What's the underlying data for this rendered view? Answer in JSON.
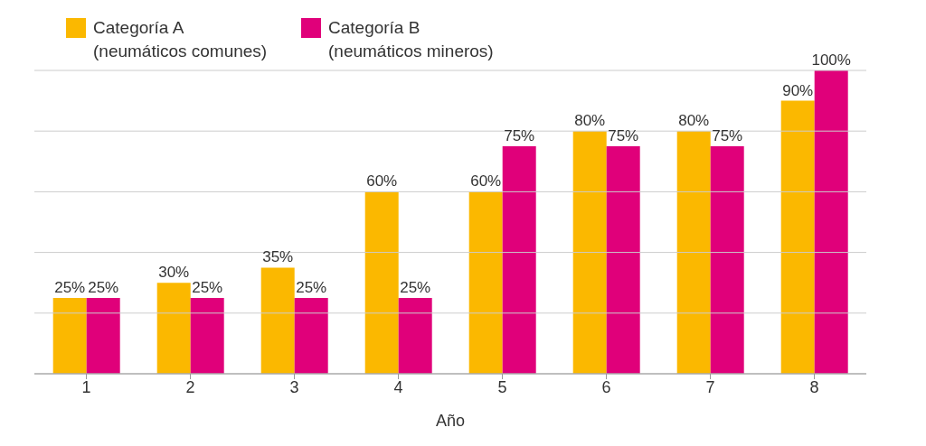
{
  "chart_data": {
    "type": "bar",
    "xlabel": "Año",
    "categories": [
      "1",
      "2",
      "3",
      "4",
      "5",
      "6",
      "7",
      "8"
    ],
    "series": [
      {
        "name": "Categoría A (neumáticos comunes)",
        "color": "#fbb800",
        "values": [
          25,
          30,
          35,
          60,
          60,
          80,
          80,
          90
        ],
        "value_labels": [
          "25%",
          "30%",
          "35%",
          "60%",
          "60%",
          "80%",
          "80%",
          "90%"
        ]
      },
      {
        "name": "Categoría B (neumáticos mineros)",
        "color": "#e0007a",
        "values": [
          25,
          25,
          25,
          25,
          75,
          75,
          75,
          100
        ],
        "value_labels": [
          "25%",
          "25%",
          "25%",
          "25%",
          "75%",
          "75%",
          "75%",
          "100%"
        ]
      }
    ],
    "ylim": [
      0,
      100
    ],
    "yticks": [
      {
        "value": 0,
        "label": null
      },
      {
        "value": 20,
        "label": null
      },
      {
        "value": 40,
        "label": null
      },
      {
        "value": 60,
        "label": null
      },
      {
        "value": 80,
        "label": null
      },
      {
        "value": 100,
        "label": null
      }
    ],
    "grid": "y",
    "tick_labels": "x",
    "legend": "top left"
  }
}
